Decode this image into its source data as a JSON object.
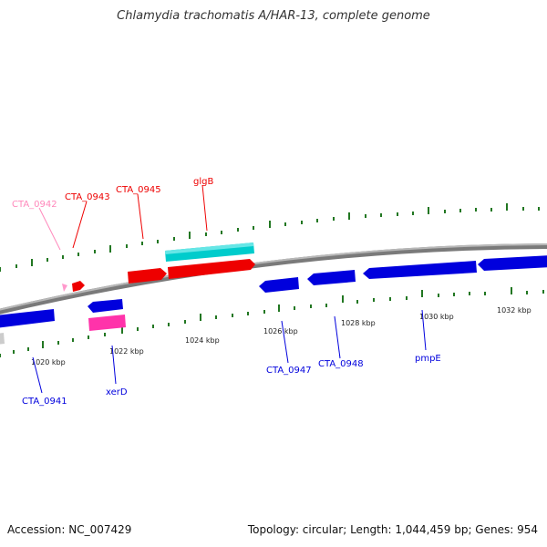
{
  "title": "Chlamydia trachomatis A/HAR-13, complete genome",
  "footer": {
    "accession": "Accession: NC_007429",
    "summary": "Topology: circular; Length: 1,044,459 bp; Genes: 954"
  },
  "colors": {
    "forward_gene": "#ee0000",
    "reverse_gene": "#0000dd",
    "cyan_gene": "#00cccc",
    "magenta_gene": "#ff33aa",
    "pale_label": "#ff88bb",
    "tick": "#227722",
    "backbone": "#888888",
    "scale_text": "#222222"
  },
  "scale_labels": [
    "1020 kbp",
    "1022 kbp",
    "1024 kbp",
    "1026 kbp",
    "1028 kbp",
    "1030 kbp",
    "1032 kbp"
  ],
  "genes_forward": [
    {
      "label": "CTA_0942",
      "color": "pale"
    },
    {
      "label": "CTA_0943",
      "color": "red"
    },
    {
      "label": "CTA_0945",
      "color": "red"
    },
    {
      "label": "glgB",
      "color": "red"
    }
  ],
  "genes_reverse": [
    {
      "label": "CTA_0941",
      "color": "blue"
    },
    {
      "label": "xerD",
      "color": "blue"
    },
    {
      "label": "CTA_0947",
      "color": "blue"
    },
    {
      "label": "CTA_0948",
      "color": "blue"
    },
    {
      "label": "pmpE",
      "color": "blue"
    }
  ]
}
